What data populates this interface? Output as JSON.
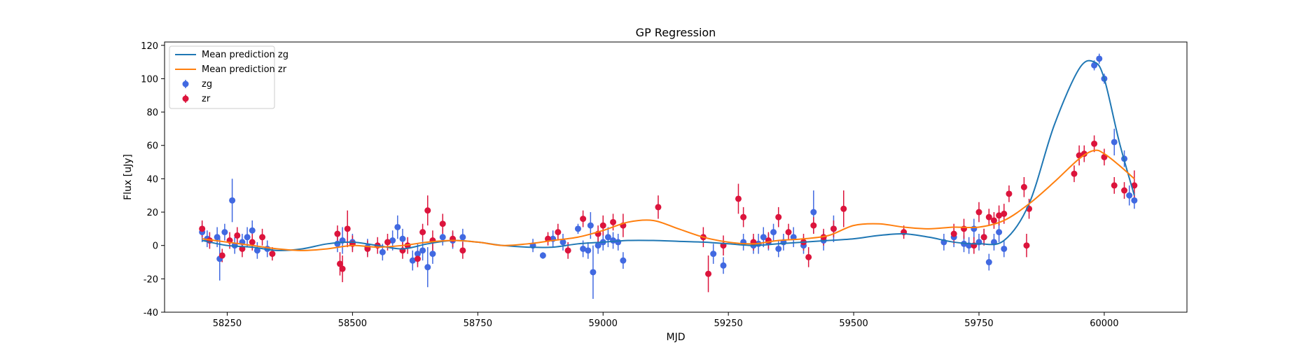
{
  "chart_data": {
    "type": "scatter",
    "title": "GP Regression",
    "xlabel": "MJD",
    "ylabel": "Flux [uJy]",
    "xlim": [
      58125,
      60165
    ],
    "ylim": [
      -40,
      122
    ],
    "xticks": [
      58250,
      58500,
      58750,
      59000,
      59250,
      59500,
      59750,
      60000
    ],
    "yticks": [
      -40,
      -20,
      0,
      20,
      40,
      60,
      80,
      100,
      120
    ],
    "grid": false,
    "legend_position": "top-left",
    "legend": [
      {
        "label": "Mean prediction zg",
        "kind": "line",
        "color": "#1f77b4"
      },
      {
        "label": "Mean prediction zr",
        "kind": "line",
        "color": "#ff7f0e"
      },
      {
        "label": "zg",
        "kind": "errorbar",
        "color": "#4169e1"
      },
      {
        "label": "zr",
        "kind": "errorbar",
        "color": "#dc143c"
      }
    ],
    "lines": [
      {
        "name": "Mean prediction zg",
        "color": "#1f77b4",
        "x": [
          58200,
          58250,
          58300,
          58350,
          58400,
          58450,
          58500,
          58550,
          58600,
          58650,
          58700,
          58750,
          58800,
          58850,
          58900,
          58950,
          59000,
          59050,
          59100,
          59150,
          59200,
          59250,
          59300,
          59350,
          59400,
          59450,
          59500,
          59550,
          59600,
          59650,
          59700,
          59750,
          59800,
          59850,
          59900,
          59950,
          59980,
          60000,
          60030,
          60060
        ],
        "y": [
          3,
          0,
          -1,
          -3,
          -2,
          1,
          2,
          0,
          -2,
          1,
          3,
          2,
          0,
          -1,
          -1,
          1,
          2,
          3,
          3,
          2.5,
          2,
          1,
          0,
          1,
          2,
          3,
          4,
          6,
          7,
          5,
          2,
          1,
          3,
          25,
          72,
          106,
          110,
          100,
          62,
          30
        ]
      },
      {
        "name": "Mean prediction zr",
        "color": "#ff7f0e",
        "x": [
          58200,
          58250,
          58300,
          58350,
          58400,
          58450,
          58500,
          58550,
          58600,
          58650,
          58700,
          58750,
          58800,
          58850,
          58900,
          58950,
          59000,
          59050,
          59100,
          59150,
          59200,
          59250,
          59300,
          59350,
          59400,
          59450,
          59500,
          59550,
          59600,
          59650,
          59700,
          59750,
          59800,
          59850,
          59900,
          59950,
          59980,
          60000,
          60030,
          60060
        ],
        "y": [
          4,
          2,
          0,
          -2,
          -3,
          -2,
          0,
          -1,
          0,
          2,
          3,
          2,
          0,
          1,
          3,
          5,
          9,
          14,
          15,
          10,
          5,
          2,
          1,
          3,
          4,
          6,
          12,
          13,
          11,
          10,
          11,
          11,
          15,
          25,
          38,
          52,
          57,
          55,
          48,
          40
        ]
      }
    ],
    "series": [
      {
        "name": "zg",
        "color": "#4169e1",
        "x": [
          58200,
          58210,
          58230,
          58235,
          58245,
          58260,
          58265,
          58280,
          58290,
          58300,
          58310,
          58330,
          58470,
          58480,
          58500,
          58530,
          58560,
          58580,
          58590,
          58600,
          58620,
          58630,
          58640,
          58650,
          58660,
          58680,
          58700,
          58720,
          58860,
          58880,
          58900,
          58920,
          58950,
          58960,
          58970,
          58975,
          58980,
          58990,
          59000,
          59010,
          59020,
          59030,
          59040,
          59220,
          59240,
          59280,
          59300,
          59310,
          59320,
          59330,
          59340,
          59350,
          59360,
          59380,
          59400,
          59420,
          59440,
          59460,
          59680,
          59700,
          59720,
          59730,
          59740,
          59750,
          59760,
          59770,
          59780,
          59790,
          59800,
          59980,
          59990,
          60000,
          60020,
          60040,
          60050,
          60060
        ],
        "y": [
          8,
          4,
          5,
          -8,
          8,
          27,
          0,
          2,
          5,
          9,
          -3,
          -2,
          1,
          3,
          2,
          -1,
          -4,
          3,
          11,
          4,
          -9,
          -5,
          -3,
          -13,
          -5,
          5,
          3,
          5,
          0,
          -6,
          4,
          2,
          10,
          -2,
          -3,
          12,
          -16,
          0,
          2,
          5,
          3,
          2,
          -9,
          -5,
          -12,
          2,
          0,
          1,
          5,
          2,
          8,
          -2,
          2,
          5,
          0,
          20,
          3,
          10,
          2,
          5,
          1,
          0,
          10,
          2,
          5,
          -10,
          2,
          8,
          -2,
          108,
          112,
          100,
          62,
          52,
          30,
          27
        ],
        "yerr": [
          6,
          5,
          6,
          13,
          5,
          13,
          5,
          5,
          6,
          6,
          5,
          5,
          5,
          8,
          5,
          5,
          5,
          6,
          7,
          6,
          6,
          6,
          6,
          12,
          6,
          5,
          5,
          5,
          4,
          2,
          5,
          5,
          3,
          5,
          5,
          8,
          16,
          5,
          5,
          6,
          5,
          5,
          5,
          6,
          5,
          5,
          5,
          6,
          6,
          5,
          5,
          5,
          5,
          6,
          5,
          13,
          6,
          8,
          5,
          6,
          5,
          5,
          6,
          5,
          5,
          5,
          5,
          6,
          5,
          3,
          3,
          3,
          8,
          5,
          6,
          5
        ]
      },
      {
        "name": "zr",
        "color": "#dc143c",
        "x": [
          58200,
          58215,
          58240,
          58255,
          58270,
          58280,
          58300,
          58320,
          58340,
          58470,
          58475,
          58480,
          58490,
          58500,
          58530,
          58550,
          58570,
          58600,
          58610,
          58630,
          58640,
          58650,
          58660,
          58680,
          58700,
          58720,
          58890,
          58910,
          58930,
          58960,
          58990,
          59000,
          59020,
          59040,
          59110,
          59200,
          59210,
          59240,
          59270,
          59280,
          59300,
          59330,
          59350,
          59370,
          59400,
          59410,
          59420,
          59440,
          59460,
          59480,
          59600,
          59700,
          59720,
          59740,
          59750,
          59760,
          59770,
          59780,
          59790,
          59800,
          59810,
          59840,
          59845,
          59850,
          59940,
          59950,
          59960,
          59980,
          60000,
          60020,
          60040,
          60060
        ],
        "y": [
          10,
          3,
          -6,
          3,
          6,
          -2,
          2,
          5,
          -5,
          7,
          -11,
          -14,
          10,
          1,
          -2,
          0,
          2,
          -3,
          0,
          -8,
          8,
          21,
          3,
          13,
          4,
          -3,
          4,
          8,
          -3,
          16,
          7,
          12,
          14,
          12,
          23,
          5,
          -17,
          0,
          28,
          17,
          2,
          3,
          17,
          8,
          2,
          -7,
          12,
          5,
          10,
          22,
          8,
          7,
          10,
          0,
          20,
          5,
          17,
          15,
          18,
          19,
          31,
          35,
          0,
          22,
          43,
          54,
          55,
          61,
          53,
          36,
          33,
          36
        ],
        "yerr": [
          5,
          5,
          4,
          5,
          5,
          5,
          5,
          5,
          4,
          5,
          7,
          8,
          11,
          5,
          5,
          5,
          5,
          5,
          5,
          5,
          5,
          9,
          6,
          6,
          5,
          5,
          4,
          5,
          5,
          5,
          5,
          6,
          5,
          7,
          7,
          6,
          11,
          6,
          9,
          6,
          5,
          5,
          6,
          5,
          5,
          6,
          5,
          5,
          5,
          11,
          4,
          6,
          6,
          5,
          6,
          5,
          5,
          5,
          6,
          6,
          5,
          6,
          7,
          6,
          5,
          6,
          5,
          5,
          5,
          5,
          5,
          9
        ]
      }
    ]
  }
}
